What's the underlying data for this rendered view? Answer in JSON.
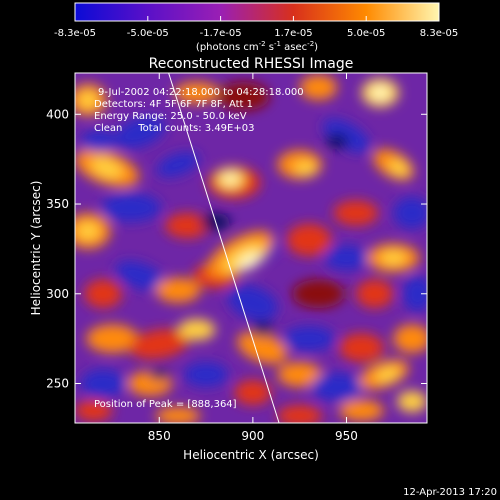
{
  "colorbar": {
    "ticks": [
      "-8.3e-05",
      "-5.0e-05",
      "-1.7e-05",
      "1.7e-05",
      "5.0e-05",
      "8.3e-05"
    ],
    "unit_label_parts": [
      "(photons cm",
      "-2",
      " s",
      "-1",
      " asec",
      "-2",
      ")"
    ],
    "colors": [
      "#0b0bd6",
      "#5a10c8",
      "#9a1fb4",
      "#d8301c",
      "#ff8a00",
      "#fff6b0"
    ]
  },
  "chart_data": {
    "type": "heatmap",
    "title": "Reconstructed RHESSI Image",
    "xlabel": "Heliocentric X (arcsec)",
    "ylabel": "Heliocentric Y (arcsec)",
    "xlim": [
      805,
      993
    ],
    "ylim": [
      228,
      423
    ],
    "x_ticks": [
      850,
      900,
      950
    ],
    "y_ticks": [
      250,
      300,
      350,
      400
    ],
    "value_range": [
      -8.3e-05,
      8.3e-05
    ],
    "peak": [
      888,
      364
    ],
    "limb_line": [
      [
        855,
        423
      ],
      [
        914,
        228
      ]
    ],
    "annotations": [
      "9-Jul-2002 04:22:18.000 to 04:28:18.000",
      "Detectors: 4F 5F 6F 7F 8F, Att 1",
      "Energy Range: 25.0 - 50.0 keV",
      "Clean     Total counts: 3.49E+03"
    ],
    "peak_label": "Position of Peak = [888,364]"
  },
  "footer": {
    "timestamp": "12-Apr-2013 17:20"
  }
}
